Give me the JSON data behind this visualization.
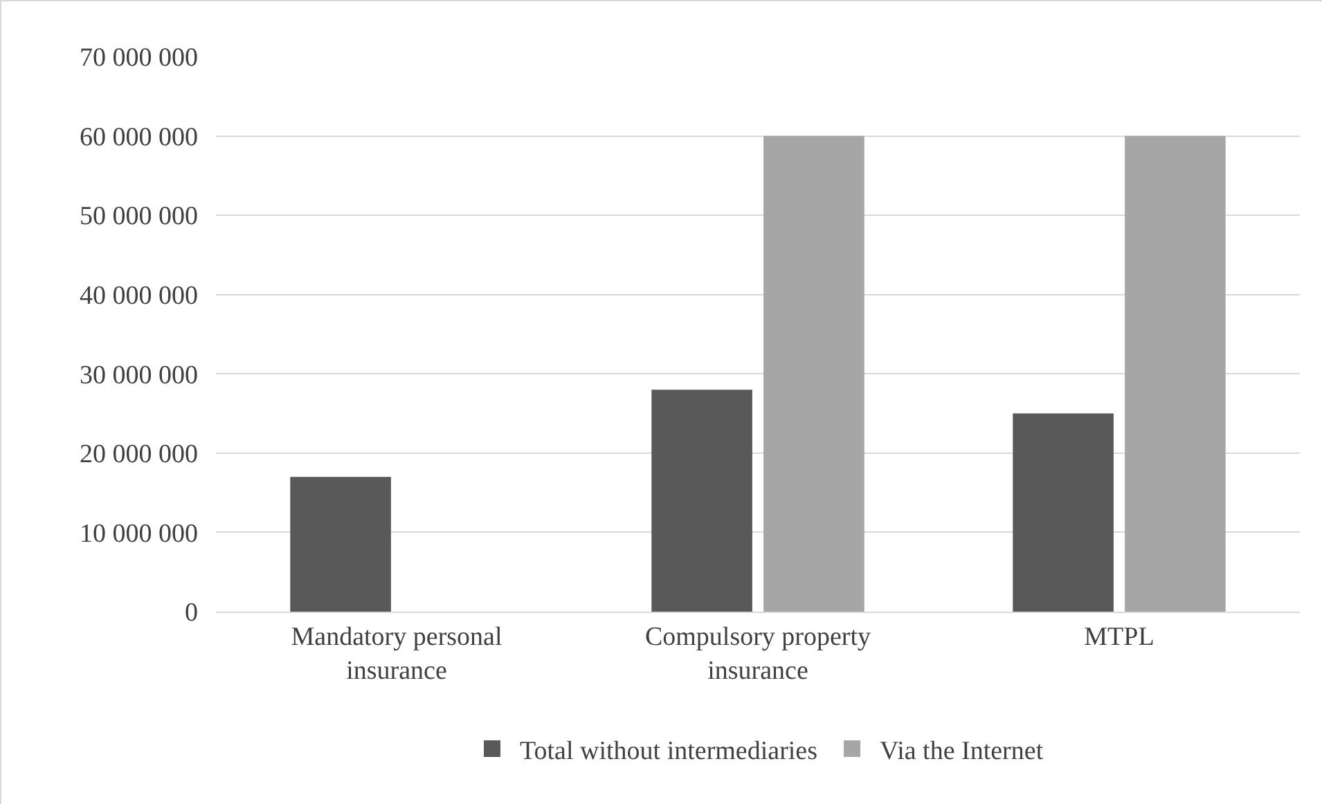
{
  "chart_data": {
    "type": "bar",
    "categories": [
      "Mandatory personal insurance",
      "Compulsory property insurance",
      "MTPL"
    ],
    "series": [
      {
        "name": "Total without intermediaries",
        "color": "#595959",
        "values": [
          17000000,
          28000000,
          25000000
        ]
      },
      {
        "name": "Via the Internet",
        "color": "#a6a6a6",
        "values": [
          0,
          60000000,
          60000000
        ]
      }
    ],
    "ylim": [
      0,
      70000000
    ],
    "yticks": [
      0,
      {
        "value": 10000000,
        "label": "10 000 000"
      },
      {
        "value": 20000000,
        "label": "20 000 000"
      },
      {
        "value": 30000000,
        "label": "30 000 000"
      },
      {
        "value": 40000000,
        "label": "40 000 000"
      },
      {
        "value": 50000000,
        "label": "50 000 000"
      },
      {
        "value": 60000000,
        "label": "60 000 000"
      },
      {
        "value": 70000000,
        "label": "70 000 000"
      }
    ],
    "grid": "y",
    "legend": "bottom"
  }
}
